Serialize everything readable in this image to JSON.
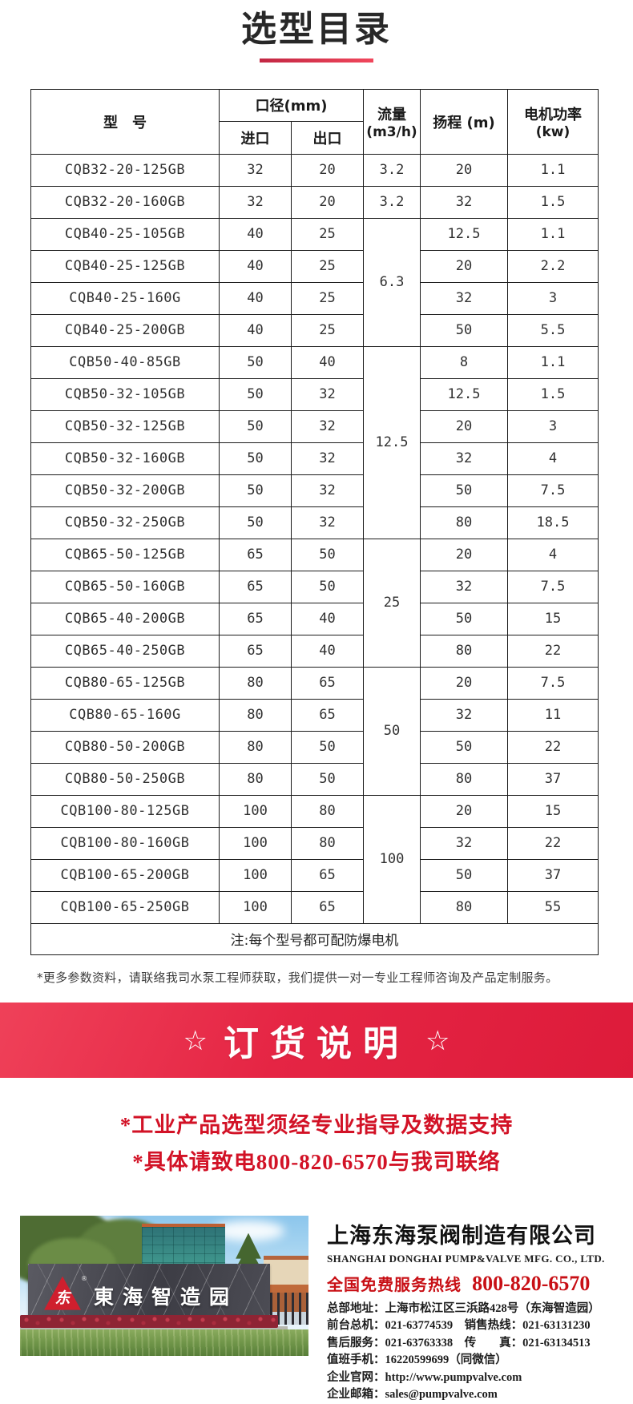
{
  "page": {
    "title": "选型目录"
  },
  "colors": {
    "banner_red_start": "#ef4159",
    "banner_red_end": "#dd1b3a",
    "title_underline_start": "#c22743",
    "title_underline_end": "#f1475c",
    "notice_red": "#d21226",
    "hotline_red": "#c80f15",
    "logo_red": "#cf1f2e"
  },
  "table": {
    "headers": {
      "model": "型　号",
      "diameter_group": "口径(mm)",
      "inlet": "进口",
      "outlet": "出口",
      "flow_line1": "流量",
      "flow_line2": "(m3/h)",
      "head": "扬程 (m)",
      "power_line1": "电机功率",
      "power_line2": "(kw)"
    },
    "rows": [
      {
        "model": "CQB32-20-125GB",
        "inlet": "32",
        "outlet": "20",
        "flow": "3.2",
        "flow_span": 1,
        "head": "20",
        "power": "1.1"
      },
      {
        "model": "CQB32-20-160GB",
        "inlet": "32",
        "outlet": "20",
        "flow": "3.2",
        "flow_span": 1,
        "head": "32",
        "power": "1.5"
      },
      {
        "model": "CQB40-25-105GB",
        "inlet": "40",
        "outlet": "25",
        "flow": "6.3",
        "flow_span": 4,
        "head": "12.5",
        "power": "1.1"
      },
      {
        "model": "CQB40-25-125GB",
        "inlet": "40",
        "outlet": "25",
        "head": "20",
        "power": "2.2"
      },
      {
        "model": "CQB40-25-160G",
        "inlet": "40",
        "outlet": "25",
        "head": "32",
        "power": "3"
      },
      {
        "model": "CQB40-25-200GB",
        "inlet": "40",
        "outlet": "25",
        "head": "50",
        "power": "5.5"
      },
      {
        "model": "CQB50-40-85GB",
        "inlet": "50",
        "outlet": "40",
        "flow": "12.5",
        "flow_span": 6,
        "head": "8",
        "power": "1.1"
      },
      {
        "model": "CQB50-32-105GB",
        "inlet": "50",
        "outlet": "32",
        "head": "12.5",
        "power": "1.5"
      },
      {
        "model": "CQB50-32-125GB",
        "inlet": "50",
        "outlet": "32",
        "head": "20",
        "power": "3"
      },
      {
        "model": "CQB50-32-160GB",
        "inlet": "50",
        "outlet": "32",
        "head": "32",
        "power": "4"
      },
      {
        "model": "CQB50-32-200GB",
        "inlet": "50",
        "outlet": "32",
        "head": "50",
        "power": "7.5"
      },
      {
        "model": "CQB50-32-250GB",
        "inlet": "50",
        "outlet": "32",
        "head": "80",
        "power": "18.5"
      },
      {
        "model": "CQB65-50-125GB",
        "inlet": "65",
        "outlet": "50",
        "flow": "25",
        "flow_span": 4,
        "head": "20",
        "power": "4"
      },
      {
        "model": "CQB65-50-160GB",
        "inlet": "65",
        "outlet": "50",
        "head": "32",
        "power": "7.5"
      },
      {
        "model": "CQB65-40-200GB",
        "inlet": "65",
        "outlet": "40",
        "head": "50",
        "power": "15"
      },
      {
        "model": "CQB65-40-250GB",
        "inlet": "65",
        "outlet": "40",
        "head": "80",
        "power": "22"
      },
      {
        "model": "CQB80-65-125GB",
        "inlet": "80",
        "outlet": "65",
        "flow": "50",
        "flow_span": 4,
        "head": "20",
        "power": "7.5"
      },
      {
        "model": "CQB80-65-160G",
        "inlet": "80",
        "outlet": "65",
        "head": "32",
        "power": "11"
      },
      {
        "model": "CQB80-50-200GB",
        "inlet": "80",
        "outlet": "50",
        "head": "50",
        "power": "22"
      },
      {
        "model": "CQB80-50-250GB",
        "inlet": "80",
        "outlet": "50",
        "head": "80",
        "power": "37"
      },
      {
        "model": "CQB100-80-125GB",
        "inlet": "100",
        "outlet": "80",
        "flow": "100",
        "flow_span": 4,
        "head": "20",
        "power": "15"
      },
      {
        "model": "CQB100-80-160GB",
        "inlet": "100",
        "outlet": "80",
        "head": "32",
        "power": "22"
      },
      {
        "model": "CQB100-65-200GB",
        "inlet": "100",
        "outlet": "65",
        "head": "50",
        "power": "37"
      },
      {
        "model": "CQB100-65-250GB",
        "inlet": "100",
        "outlet": "65",
        "head": "80",
        "power": "55"
      }
    ],
    "note": "注:每个型号都可配防爆电机"
  },
  "footnote": "*更多参数资料，请联络我司水泵工程师获取，我们提供一对一专业工程师咨询及产品定制服务。",
  "banner": {
    "star": "☆",
    "title": "订货说明"
  },
  "notices": [
    "*工业产品选型须经专业指导及数据支持",
    "*具体请致电800-820-6570与我司联络"
  ],
  "photo": {
    "sign_text": "東海智造园",
    "logo_glyph": "东",
    "reg_mark": "®"
  },
  "company": {
    "name_cn": "上海东海泵阀制造有限公司",
    "name_en": "SHANGHAI DONGHAI PUMP&VALVE MFG. CO., LTD.",
    "hotline_label": "全国免费服务热线",
    "hotline_number": "800-820-6570",
    "contacts": [
      "总部地址：上海市松江区三浜路428号（东海智造园）",
      "前台总机：021-63774539　销售热线：021-63131230",
      "售后服务：021-63763338　传　　真：021-63134513",
      "值班手机：16220599699（同微信）",
      "企业官网：http://www.pumpvalve.com",
      "企业邮箱：sales@pumpvalve.com"
    ]
  }
}
